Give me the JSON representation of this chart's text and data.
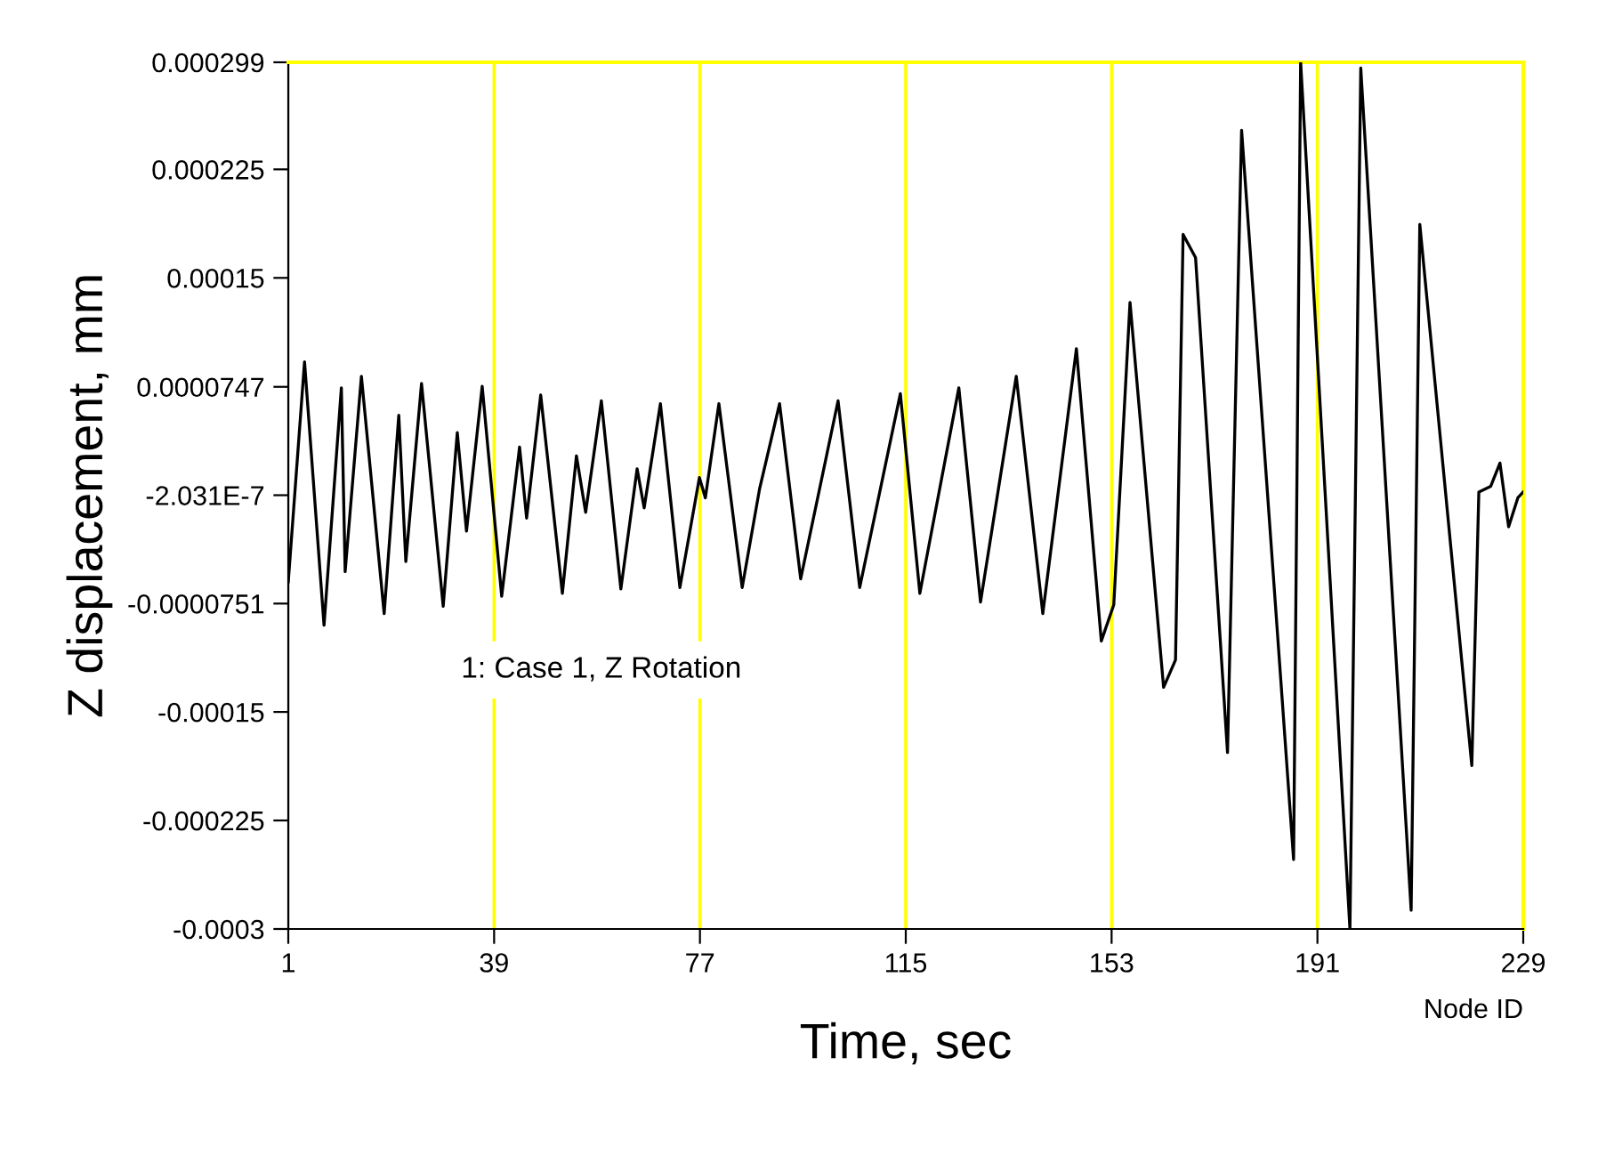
{
  "chart_data": {
    "type": "line",
    "xlabel": "Time, sec",
    "ylabel": "Z displacement, mm",
    "annotations": [
      "1: Case 1, Z Rotation",
      "Node ID"
    ],
    "series": [
      {
        "color": "#000000",
        "x": [
          1,
          4,
          7.6,
          10.8,
          11.5,
          14.5,
          18.7,
          21.4,
          22.7,
          25.6,
          29.6,
          32.2,
          33.9,
          36.8,
          40.4,
          43.7,
          45,
          47.6,
          51.6,
          54.2,
          55.9,
          58.8,
          62.4,
          65.4,
          66.7,
          69.7,
          73.3,
          76.9,
          78,
          80.5,
          84.8,
          88,
          91.7,
          95.6,
          102.5,
          106.5,
          114,
          117.6,
          124.8,
          128.8,
          135.4,
          140.3,
          146.5,
          151.1,
          153.4,
          156.4,
          162.6,
          164.8,
          166.2,
          168.5,
          174.4,
          177,
          186.6,
          187.9,
          197,
          199,
          208.3,
          209.9,
          219.5,
          220.8,
          223,
          224.7,
          226.3,
          228,
          229
        ],
        "values": [
          -6e-05,
          9.2e-05,
          -9e-05,
          7.4e-05,
          -5.3e-05,
          8.2e-05,
          -8.2e-05,
          5.5e-05,
          -4.6e-05,
          7.7e-05,
          -7.7e-05,
          4.3e-05,
          -2.5e-05,
          7.5e-05,
          -7e-05,
          3.3e-05,
          -1.6e-05,
          6.9e-05,
          -6.8e-05,
          2.7e-05,
          -1.2e-05,
          6.5e-05,
          -6.5e-05,
          1.8e-05,
          -9e-06,
          6.3e-05,
          -6.4e-05,
          1.2e-05,
          -2e-06,
          6.3e-05,
          -6.4e-05,
          4e-06,
          6.3e-05,
          -5.8e-05,
          6.5e-05,
          -6.4e-05,
          7e-05,
          -6.8e-05,
          7.4e-05,
          -7.4e-05,
          8.2e-05,
          -8.2e-05,
          0.000101,
          -0.000101,
          -7.6e-05,
          0.000133,
          -0.000133,
          -0.000114,
          0.00018,
          0.000164,
          -0.000178,
          0.000252,
          -0.000252,
          0.000299,
          -0.0003,
          0.000295,
          -0.000287,
          0.000187,
          -0.000187,
          2e-06,
          6e-06,
          2.2e-05,
          -2.2e-05,
          -2e-06,
          2e-06
        ]
      }
    ],
    "xlim": [
      1,
      229
    ],
    "xticks": [
      1,
      39,
      77,
      115,
      153,
      191,
      229
    ],
    "ylim": [
      -0.0003,
      0.000299
    ],
    "yticks": [
      {
        "value": -0.0003,
        "label": "-0.0003"
      },
      {
        "value": -0.000225,
        "label": "-0.000225"
      },
      {
        "value": -0.00015,
        "label": "-0.00015"
      },
      {
        "value": -7.51e-05,
        "label": "-0.0000751"
      },
      {
        "value": -2.031e-07,
        "label": "-2.031E-7"
      },
      {
        "value": 7.47e-05,
        "label": "0.0000747"
      },
      {
        "value": 0.00015,
        "label": "0.00015"
      },
      {
        "value": 0.000225,
        "label": "0.000225"
      },
      {
        "value": 0.000299,
        "label": "0.000299"
      }
    ],
    "grid": "x",
    "line_style": "solid",
    "marker": "none"
  }
}
